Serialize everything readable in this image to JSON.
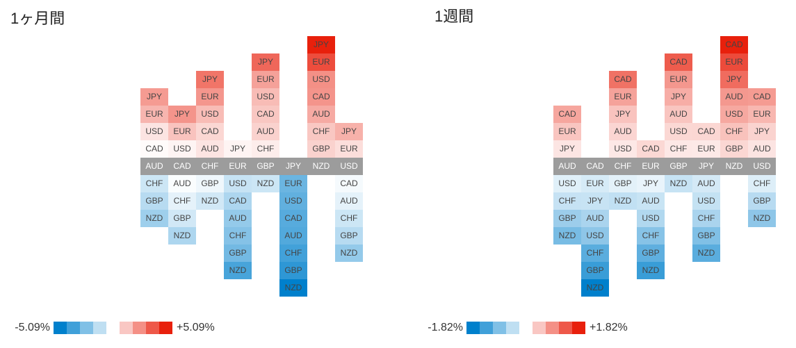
{
  "colors": {
    "positive": "#e8200c",
    "negative": "#0080cc",
    "neutral": "#ffffff",
    "base_row": "#9c9c9c",
    "base_text": "#ffffff",
    "cell_text": "#444444"
  },
  "chart_data": [
    {
      "type": "heatmap",
      "title": "1ヶ月間",
      "columns": [
        {
          "base": "AUD",
          "above": [
            {
              "currency": "CAD",
              "value": 0.1
            },
            {
              "currency": "USD",
              "value": 0.61
            },
            {
              "currency": "EUR",
              "value": 1.68
            },
            {
              "currency": "JPY",
              "value": 2.29
            }
          ],
          "below": [
            {
              "currency": "CHF",
              "value": -1.02
            },
            {
              "currency": "GBP",
              "value": -1.43
            },
            {
              "currency": "NZD",
              "value": -1.93
            }
          ]
        },
        {
          "base": "CAD",
          "above": [
            {
              "currency": "USD",
              "value": 0.25
            },
            {
              "currency": "EUR",
              "value": 1.37
            },
            {
              "currency": "JPY",
              "value": 2.44
            }
          ],
          "below": [
            {
              "currency": "AUD",
              "value": -0.1
            },
            {
              "currency": "CHF",
              "value": -0.51
            },
            {
              "currency": "GBP",
              "value": -0.92
            },
            {
              "currency": "NZD",
              "value": -1.63
            }
          ]
        },
        {
          "base": "CHF",
          "above": [
            {
              "currency": "AUD",
              "value": 0.61
            },
            {
              "currency": "CAD",
              "value": 0.92
            },
            {
              "currency": "USD",
              "value": 1.53
            },
            {
              "currency": "EUR",
              "value": 2.39
            },
            {
              "currency": "JPY",
              "value": 3.16
            }
          ],
          "below": [
            {
              "currency": "GBP",
              "value": -0.31
            },
            {
              "currency": "NZD",
              "value": -0.92
            }
          ]
        },
        {
          "base": "EUR",
          "above": [
            {
              "currency": "JPY",
              "value": 0.25
            }
          ],
          "below": [
            {
              "currency": "USD",
              "value": -1.12
            },
            {
              "currency": "CAD",
              "value": -1.63
            },
            {
              "currency": "AUD",
              "value": -2.14
            },
            {
              "currency": "CHF",
              "value": -2.44
            },
            {
              "currency": "GBP",
              "value": -2.8
            },
            {
              "currency": "NZD",
              "value": -3.66
            }
          ]
        },
        {
          "base": "GBP",
          "above": [
            {
              "currency": "CHF",
              "value": 0.41
            },
            {
              "currency": "AUD",
              "value": 1.02
            },
            {
              "currency": "CAD",
              "value": 1.27
            },
            {
              "currency": "USD",
              "value": 1.53
            },
            {
              "currency": "EUR",
              "value": 2.14
            },
            {
              "currency": "JPY",
              "value": 3.46
            }
          ],
          "below": [
            {
              "currency": "NZD",
              "value": -1.02
            }
          ]
        },
        {
          "base": "JPY",
          "above": [],
          "below": [
            {
              "currency": "EUR",
              "value": -2.95
            },
            {
              "currency": "USD",
              "value": -3.16
            },
            {
              "currency": "CAD",
              "value": -3.36
            },
            {
              "currency": "AUD",
              "value": -3.46
            },
            {
              "currency": "CHF",
              "value": -3.77
            },
            {
              "currency": "GBP",
              "value": -4.17
            },
            {
              "currency": "NZD",
              "value": -5.09
            }
          ]
        },
        {
          "base": "NZD",
          "above": [
            {
              "currency": "GBP",
              "value": 1.02
            },
            {
              "currency": "CHF",
              "value": 1.27
            },
            {
              "currency": "AUD",
              "value": 1.93
            },
            {
              "currency": "CAD",
              "value": 2.44
            },
            {
              "currency": "USD",
              "value": 2.54
            },
            {
              "currency": "EUR",
              "value": 4.07
            },
            {
              "currency": "JPY",
              "value": 5.09
            }
          ],
          "below": []
        },
        {
          "base": "USD",
          "above": [
            {
              "currency": "EUR",
              "value": 0.76
            },
            {
              "currency": "JPY",
              "value": 1.78
            }
          ],
          "below": [
            {
              "currency": "CAD",
              "value": -0.2
            },
            {
              "currency": "AUD",
              "value": -0.51
            },
            {
              "currency": "CHF",
              "value": -1.02
            },
            {
              "currency": "GBP",
              "value": -1.43
            },
            {
              "currency": "NZD",
              "value": -2.14
            }
          ]
        }
      ],
      "legend": {
        "min_label": "-5.09%",
        "max_label": "+5.09%",
        "min": -5.09,
        "max": 5.09,
        "negative_colors": [
          "#0080cc",
          "#40a0d9",
          "#80c0e6",
          "#bfdff2"
        ],
        "positive_colors": [
          "#f9c7c3",
          "#f49086",
          "#ee5849",
          "#e8200c"
        ]
      }
    },
    {
      "type": "heatmap",
      "title": "1週間",
      "columns": [
        {
          "base": "AUD",
          "above": [
            {
              "currency": "JPY",
              "value": 0.21
            },
            {
              "currency": "EUR",
              "value": 0.47
            },
            {
              "currency": "CAD",
              "value": 0.73
            }
          ],
          "below": [
            {
              "currency": "USD",
              "value": -0.22
            },
            {
              "currency": "CHF",
              "value": -0.41
            },
            {
              "currency": "GBP",
              "value": -0.71
            },
            {
              "currency": "NZD",
              "value": -0.96
            }
          ]
        },
        {
          "base": "CAD",
          "above": [],
          "below": [
            {
              "currency": "EUR",
              "value": -0.29
            },
            {
              "currency": "JPY",
              "value": -0.4
            },
            {
              "currency": "AUD",
              "value": -0.61
            },
            {
              "currency": "USD",
              "value": -0.81
            },
            {
              "currency": "CHF",
              "value": -1.18
            },
            {
              "currency": "GBP",
              "value": -1.41
            },
            {
              "currency": "NZD",
              "value": -1.82
            }
          ]
        },
        {
          "base": "CHF",
          "above": [
            {
              "currency": "USD",
              "value": 0.19
            },
            {
              "currency": "AUD",
              "value": 0.34
            },
            {
              "currency": "JPY",
              "value": 0.49
            },
            {
              "currency": "EUR",
              "value": 0.76
            },
            {
              "currency": "CAD",
              "value": 1.15
            }
          ],
          "below": [
            {
              "currency": "GBP",
              "value": -0.2
            },
            {
              "currency": "NZD",
              "value": -0.44
            }
          ]
        },
        {
          "base": "EUR",
          "above": [
            {
              "currency": "CAD",
              "value": 0.32
            }
          ],
          "below": [
            {
              "currency": "JPY",
              "value": -0.16
            },
            {
              "currency": "AUD",
              "value": -0.39
            },
            {
              "currency": "USD",
              "value": -0.56
            },
            {
              "currency": "CHF",
              "value": -0.86
            },
            {
              "currency": "GBP",
              "value": -1.14
            },
            {
              "currency": "NZD",
              "value": -1.41
            }
          ]
        },
        {
          "base": "GBP",
          "above": [
            {
              "currency": "CHF",
              "value": 0.19
            },
            {
              "currency": "USD",
              "value": 0.32
            },
            {
              "currency": "AUD",
              "value": 0.47
            },
            {
              "currency": "JPY",
              "value": 0.67
            },
            {
              "currency": "EUR",
              "value": 0.85
            },
            {
              "currency": "CAD",
              "value": 1.33
            }
          ],
          "below": [
            {
              "currency": "NZD",
              "value": -0.4
            }
          ]
        },
        {
          "base": "JPY",
          "above": [
            {
              "currency": "EUR",
              "value": 0.18
            },
            {
              "currency": "CAD",
              "value": 0.33
            }
          ],
          "below": [
            {
              "currency": "AUD",
              "value": -0.31
            },
            {
              "currency": "USD",
              "value": -0.42
            },
            {
              "currency": "CHF",
              "value": -0.61
            },
            {
              "currency": "GBP",
              "value": -0.91
            },
            {
              "currency": "NZD",
              "value": -1.18
            }
          ]
        },
        {
          "base": "NZD",
          "above": [
            {
              "currency": "GBP",
              "value": 0.33
            },
            {
              "currency": "CHF",
              "value": 0.5
            },
            {
              "currency": "USD",
              "value": 0.71
            },
            {
              "currency": "AUD",
              "value": 0.84
            },
            {
              "currency": "JPY",
              "value": 1.2
            },
            {
              "currency": "EUR",
              "value": 1.47
            },
            {
              "currency": "CAD",
              "value": 1.82
            }
          ],
          "below": []
        },
        {
          "base": "USD",
          "above": [
            {
              "currency": "AUD",
              "value": 0.22
            },
            {
              "currency": "JPY",
              "value": 0.36
            },
            {
              "currency": "EUR",
              "value": 0.59
            },
            {
              "currency": "CAD",
              "value": 0.82
            }
          ],
          "below": [
            {
              "currency": "CHF",
              "value": -0.24
            },
            {
              "currency": "GBP",
              "value": -0.51
            },
            {
              "currency": "NZD",
              "value": -0.81
            }
          ]
        }
      ],
      "legend": {
        "min_label": "-1.82%",
        "max_label": "+1.82%",
        "min": -1.82,
        "max": 1.82,
        "negative_colors": [
          "#0080cc",
          "#40a0d9",
          "#80c0e6",
          "#bfdff2"
        ],
        "positive_colors": [
          "#f9c7c3",
          "#f49086",
          "#ee5849",
          "#e8200c"
        ]
      }
    }
  ]
}
